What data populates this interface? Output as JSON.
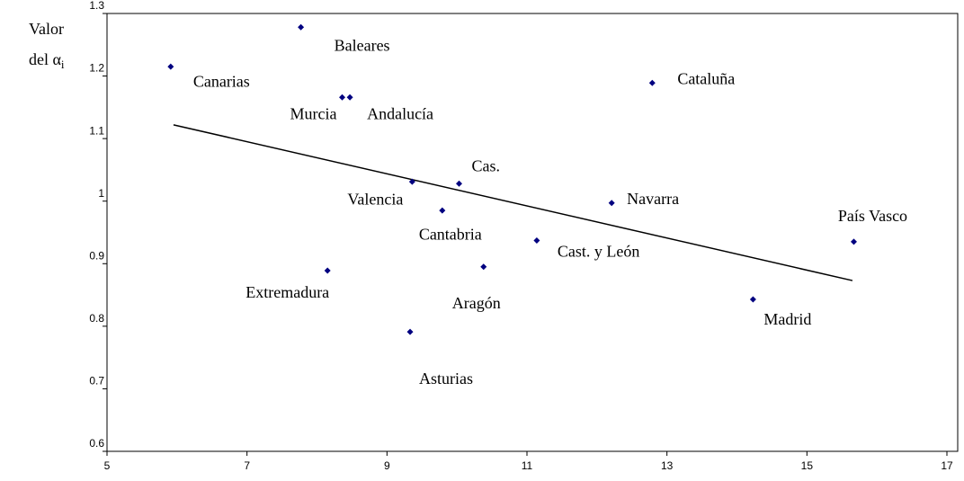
{
  "chart_data": {
    "type": "scatter",
    "y_label": {
      "line1": "Valor",
      "line2": "del α",
      "sub": "i"
    },
    "categories": [
      "Canarias",
      "Baleares",
      "Murcia",
      "Andalucía",
      "Cataluña",
      "Cas.",
      "Valencia",
      "Cantabria",
      "Navarra",
      "Cast. y León",
      "País Vasco",
      "Extremadura",
      "Aragón",
      "Madrid",
      "Asturias"
    ],
    "x": [
      5.91,
      7.77,
      8.36,
      8.47,
      12.79,
      10.03,
      9.36,
      9.79,
      12.21,
      11.14,
      15.67,
      8.15,
      10.38,
      14.23,
      9.33
    ],
    "values": [
      1.215,
      1.278,
      1.166,
      1.166,
      1.189,
      1.028,
      1.031,
      0.985,
      0.997,
      0.937,
      0.935,
      0.889,
      0.895,
      0.843,
      0.791
    ],
    "color": "#000080",
    "trend": {
      "x": [
        5.95,
        15.65
      ],
      "values": [
        1.122,
        0.873
      ],
      "color": "#000000"
    },
    "xlim": [
      5,
      17
    ],
    "xticks": [
      5,
      7,
      9,
      11,
      13,
      15,
      17
    ],
    "ylim": [
      0.6,
      1.3
    ],
    "yticks": [
      0.6,
      0.7,
      0.8,
      0.9,
      1,
      1.1,
      1.2,
      1.3
    ],
    "grid": false
  }
}
